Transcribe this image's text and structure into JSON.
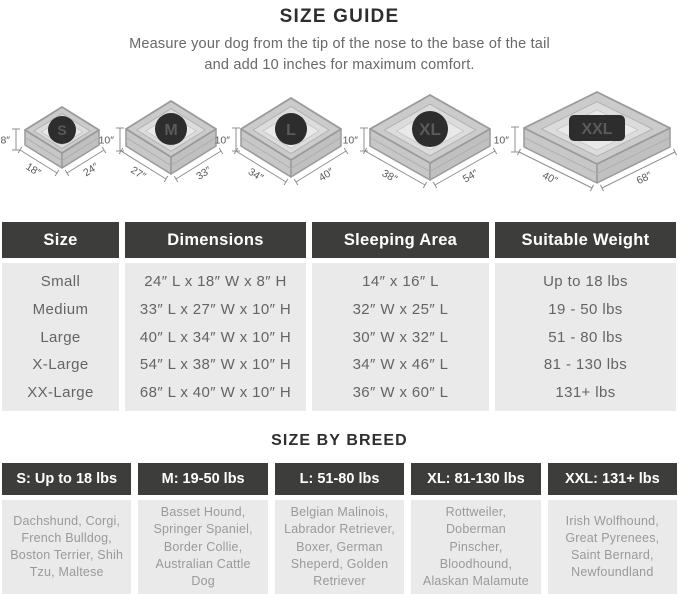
{
  "page": {
    "title": "SIZE GUIDE",
    "subtitle_line1": "Measure your dog from the tip of the nose to the base of the tail",
    "subtitle_line2": "and add 10 inches for maximum comfort."
  },
  "beds": [
    {
      "badge": "S",
      "height": "8″",
      "width": "18″",
      "length": "24″"
    },
    {
      "badge": "M",
      "height": "10″",
      "width": "27″",
      "length": "33″"
    },
    {
      "badge": "L",
      "height": "10″",
      "width": "34″",
      "length": "40″"
    },
    {
      "badge": "XL",
      "height": "10″",
      "width": "38″",
      "length": "54″"
    },
    {
      "badge": "XXL",
      "height": "10″",
      "width": "40″",
      "length": "68″"
    }
  ],
  "size_table": {
    "headers": [
      "Size",
      "Dimensions",
      "Sleeping Area",
      "Suitable Weight"
    ],
    "rows": [
      {
        "size": "Small",
        "dimensions": "24″ L x 18″ W x 8″ H",
        "sleeping_area": "14″ x 16″ L",
        "weight": "Up to 18 lbs"
      },
      {
        "size": "Medium",
        "dimensions": "33″ L x 27″ W x 10″ H",
        "sleeping_area": "32″ W x 25″ L",
        "weight": "19 - 50 lbs"
      },
      {
        "size": "Large",
        "dimensions": "40″ L x 34″ W x 10″ H",
        "sleeping_area": "30″ W x 32″ L",
        "weight": "51 - 80 lbs"
      },
      {
        "size": "X-Large",
        "dimensions": "54″ L x 38″ W x 10″ H",
        "sleeping_area": "34″ W x 46″ L",
        "weight": "81 - 130 lbs"
      },
      {
        "size": "XX-Large",
        "dimensions": "68″ L x 40″ W x 10″ H",
        "sleeping_area": "36″ W x 60″ L",
        "weight": "131+ lbs"
      }
    ]
  },
  "breed_section": {
    "title": "SIZE BY BREED",
    "columns": [
      {
        "header": "S: Up to 18 lbs",
        "breeds": "Dachshund, Corgi, French Bulldog, Boston Terrier, Shih Tzu, Maltese"
      },
      {
        "header": "M: 19-50 lbs",
        "breeds": "Basset Hound, Springer Spaniel, Border Collie, Australian Cattle Dog"
      },
      {
        "header": "L: 51-80 lbs",
        "breeds": "Belgian Malinois, Labrador Retriever, Boxer, German Sheperd, Golden Retriever"
      },
      {
        "header": "XL: 81-130 lbs",
        "breeds": "Rottweiler, Doberman Pinscher, Bloodhound, Alaskan Malamute"
      },
      {
        "header": "XXL: 131+ lbs",
        "breeds": "Irish Wolfhound, Great Pyrenees, Saint Bernard, Newfoundland"
      }
    ]
  },
  "colors": {
    "header_bg": "#3d3e3c",
    "cell_bg": "#eaeaea",
    "badge_bg": "#2d2d2d",
    "bed_rim": "#cbcbcb",
    "bed_cushion": "#e9e9e9",
    "bed_outline": "#9a9a9a"
  }
}
